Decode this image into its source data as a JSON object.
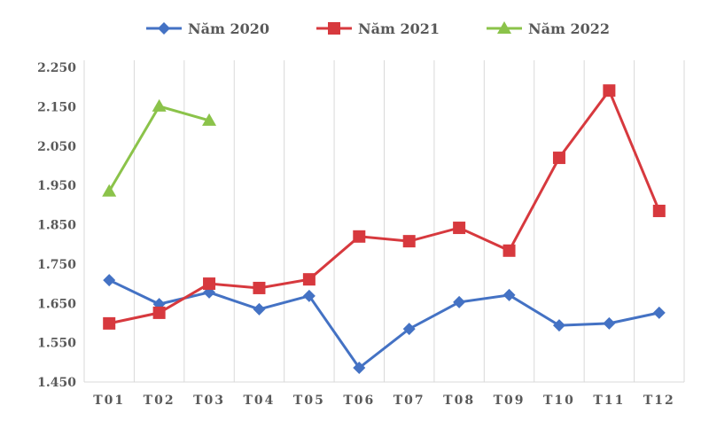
{
  "chart_data": {
    "type": "line",
    "title": "",
    "xlabel": "",
    "ylabel": "",
    "categories": [
      "T01",
      "T02",
      "T03",
      "T04",
      "T05",
      "T06",
      "T07",
      "T08",
      "T09",
      "T10",
      "T11",
      "T12"
    ],
    "ylim": [
      1450,
      2250
    ],
    "yticks": [
      "1.450",
      "1.550",
      "1.650",
      "1.750",
      "1.850",
      "1.950",
      "2.050",
      "2.150",
      "2.250"
    ],
    "grid": "vertical",
    "legend": "top",
    "series": [
      {
        "name": "Năm 2020",
        "color": "#4472C4",
        "marker": "diamond",
        "values": [
          1709,
          1648,
          1678,
          1635,
          1669,
          1486,
          1585,
          1653,
          1671,
          1594,
          1599,
          1626
        ]
      },
      {
        "name": "Năm 2021",
        "color": "#D7393E",
        "marker": "square",
        "values": [
          1599,
          1626,
          1700,
          1689,
          1711,
          1820,
          1808,
          1842,
          1784,
          2020,
          2191,
          1885
        ]
      },
      {
        "name": "Năm 2022",
        "color": "#8BC34A",
        "marker": "triangle",
        "values": [
          1935,
          2151,
          2115,
          null,
          null,
          null,
          null,
          null,
          null,
          null,
          null,
          null
        ]
      }
    ]
  }
}
